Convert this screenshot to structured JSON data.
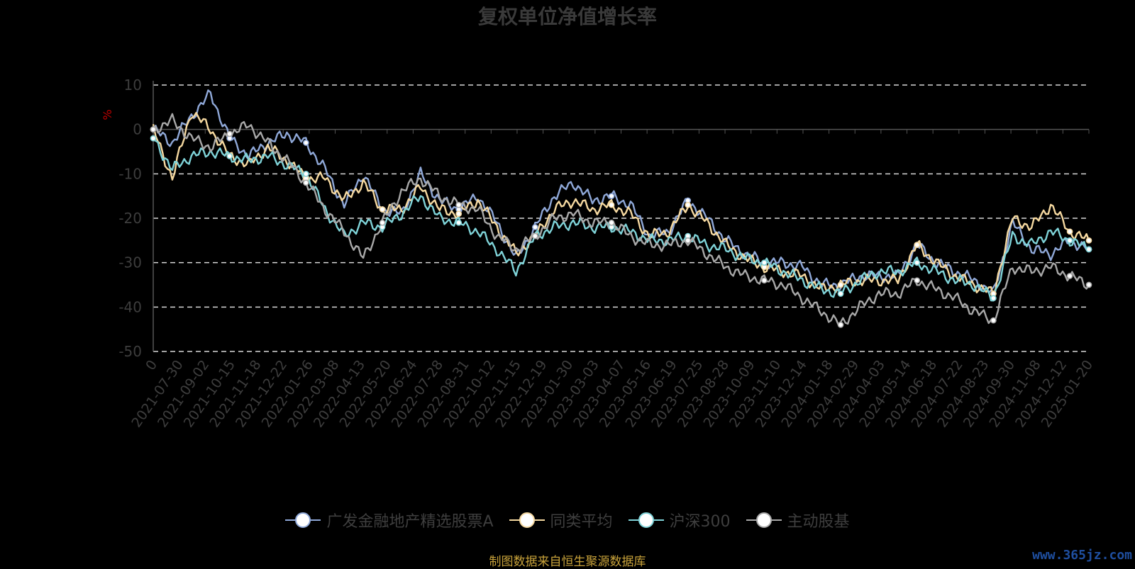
{
  "title": "复权单位净值增长率",
  "source_note": "制图数据来自恒生聚源数据库",
  "watermark": "www.365jz.com",
  "chart_data": {
    "type": "line",
    "title": "复权单位净值增长率",
    "ylabel": "%",
    "ylim": [
      -50,
      10
    ],
    "yticks": [
      10,
      0,
      -10,
      -20,
      -30,
      -40,
      -50
    ],
    "grid": "dashed horizontal",
    "legend_position": "bottom",
    "x_ticks": [
      "0",
      "2021-07-30",
      "2021-09-02",
      "2021-10-15",
      "2021-11-18",
      "2021-12-22",
      "2022-01-26",
      "2022-03-08",
      "2022-04-13",
      "2022-05-20",
      "2022-06-24",
      "2022-07-28",
      "2022-08-31",
      "2022-10-12",
      "2022-11-15",
      "2022-12-19",
      "2023-01-30",
      "2023-03-03",
      "2023-04-07",
      "2023-05-16",
      "2023-06-19",
      "2023-07-25",
      "2023-08-28",
      "2023-10-09",
      "2023-11-10",
      "2023-12-14",
      "2024-01-18",
      "2024-02-29",
      "2024-04-03",
      "2024-05-14",
      "2024-06-18",
      "2024-07-22",
      "2024-08-23",
      "2024-09-30",
      "2024-11-08",
      "2024-12-12",
      "2025-01-20"
    ],
    "series": [
      {
        "name": "广发金融地产精选股票A",
        "color": "#8fa8d8",
        "values": [
          0,
          -3,
          3,
          8,
          -2,
          -6,
          -3,
          -1,
          -3,
          -9,
          -17,
          -10,
          -18,
          -19,
          -10,
          -16,
          -18,
          -15,
          -21,
          -29,
          -22,
          -15,
          -12,
          -16,
          -15,
          -17,
          -24,
          -23,
          -16,
          -20,
          -25,
          -28,
          -30,
          -30,
          -31,
          -35,
          -35,
          -33,
          -33,
          -33,
          -26,
          -30,
          -32,
          -34,
          -37,
          -21,
          -27,
          -28,
          -25,
          -27
        ]
      },
      {
        "name": "同类平均",
        "color": "#f6d9a0",
        "values": [
          0,
          -11,
          4,
          0,
          -6,
          -8,
          -4,
          -7,
          -11,
          -11,
          -16,
          -12,
          -18,
          -18,
          -13,
          -18,
          -19,
          -16,
          -22,
          -28,
          -24,
          -18,
          -16,
          -18,
          -17,
          -19,
          -24,
          -23,
          -17,
          -21,
          -26,
          -29,
          -31,
          -32,
          -33,
          -36,
          -35,
          -34,
          -34,
          -34,
          -26,
          -30,
          -33,
          -35,
          -37,
          -20,
          -22,
          -17,
          -23,
          -25
        ]
      },
      {
        "name": "沪深300",
        "color": "#7fd3d8",
        "values": [
          -2,
          -9,
          -6,
          -5,
          -6,
          -7,
          -6,
          -8,
          -10,
          -18,
          -24,
          -21,
          -22,
          -19,
          -15,
          -20,
          -21,
          -23,
          -27,
          -32,
          -24,
          -22,
          -21,
          -22,
          -22,
          -23,
          -25,
          -25,
          -24,
          -26,
          -27,
          -29,
          -30,
          -32,
          -34,
          -36,
          -37,
          -34,
          -32,
          -32,
          -30,
          -32,
          -34,
          -35,
          -38,
          -24,
          -26,
          -23,
          -25,
          -27
        ]
      },
      {
        "name": "主动股基",
        "color": "#a8a8a8",
        "values": [
          0,
          2,
          -2,
          -4,
          -1,
          1,
          -3,
          -7,
          -12,
          -18,
          -23,
          -29,
          -21,
          -14,
          -11,
          -15,
          -17,
          -18,
          -24,
          -27,
          -24,
          -20,
          -19,
          -21,
          -21,
          -24,
          -26,
          -26,
          -25,
          -28,
          -31,
          -33,
          -34,
          -35,
          -38,
          -41,
          -44,
          -40,
          -37,
          -37,
          -34,
          -36,
          -38,
          -41,
          -43,
          -31,
          -32,
          -31,
          -33,
          -35
        ]
      }
    ]
  }
}
